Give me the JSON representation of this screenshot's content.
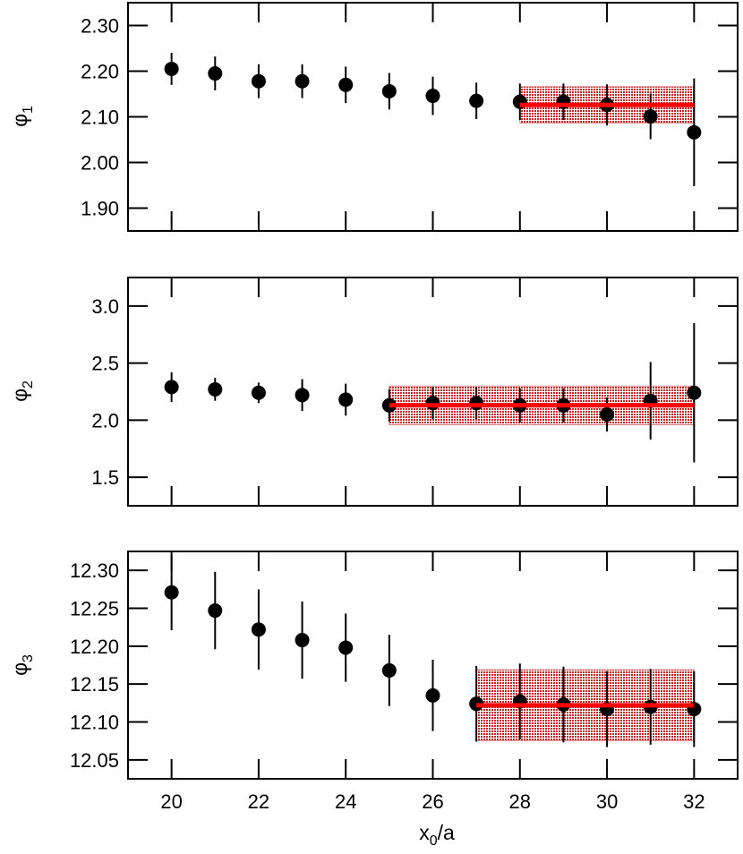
{
  "chart_data": [
    {
      "type": "scatter",
      "ylabel": "φ",
      "ylabel_sub": "1",
      "xlim": [
        19,
        33
      ],
      "ylim": [
        1.85,
        2.35
      ],
      "yticks": [
        "1.90",
        "2.00",
        "2.10",
        "2.20",
        "2.30"
      ],
      "x": [
        20,
        21,
        22,
        23,
        24,
        25,
        26,
        27,
        28,
        29,
        30,
        31,
        32
      ],
      "y": [
        2.205,
        2.195,
        2.178,
        2.178,
        2.17,
        2.156,
        2.146,
        2.135,
        2.133,
        2.133,
        2.126,
        2.101,
        2.066
      ],
      "yerr": [
        0.035,
        0.037,
        0.037,
        0.037,
        0.04,
        0.04,
        0.042,
        0.04,
        0.04,
        0.04,
        0.045,
        0.05,
        0.118
      ],
      "fit": {
        "x_range": [
          28,
          32
        ],
        "value": 2.126,
        "error": 0.04
      }
    },
    {
      "type": "scatter",
      "ylabel": "φ",
      "ylabel_sub": "2",
      "xlim": [
        19,
        33
      ],
      "ylim": [
        1.25,
        3.25
      ],
      "yticks": [
        "1.5",
        "2.0",
        "2.5",
        "3.0"
      ],
      "x": [
        20,
        21,
        22,
        23,
        24,
        25,
        26,
        27,
        28,
        29,
        30,
        31,
        32
      ],
      "y": [
        2.29,
        2.27,
        2.24,
        2.22,
        2.18,
        2.13,
        2.15,
        2.15,
        2.13,
        2.13,
        2.05,
        2.17,
        2.24
      ],
      "yerr": [
        0.13,
        0.1,
        0.09,
        0.14,
        0.14,
        0.14,
        0.14,
        0.14,
        0.15,
        0.15,
        0.15,
        0.34,
        0.61
      ],
      "fit": {
        "x_range": [
          25,
          32
        ],
        "value": 2.13,
        "error": 0.17
      }
    },
    {
      "type": "scatter",
      "ylabel": "φ",
      "ylabel_sub": "3",
      "xlabel": "x",
      "xlabel_sub": "0",
      "xlabel_suffix": "/a",
      "xlim": [
        19,
        33
      ],
      "ylim": [
        12.025,
        12.325
      ],
      "xticks": [
        "20",
        "22",
        "24",
        "26",
        "28",
        "30",
        "32"
      ],
      "yticks": [
        "12.05",
        "12.10",
        "12.15",
        "12.20",
        "12.25",
        "12.30"
      ],
      "x": [
        20,
        21,
        22,
        23,
        24,
        25,
        26,
        27,
        28,
        29,
        30,
        31,
        32
      ],
      "y": [
        12.271,
        12.247,
        12.222,
        12.208,
        12.198,
        12.168,
        12.135,
        12.124,
        12.127,
        12.123,
        12.117,
        12.12,
        12.117
      ],
      "yerr": [
        0.05,
        0.051,
        0.053,
        0.051,
        0.045,
        0.047,
        0.047,
        0.05,
        0.05,
        0.05,
        0.05,
        0.05,
        0.05
      ],
      "fit": {
        "x_range": [
          27,
          32
        ],
        "value": 12.122,
        "error": 0.047
      }
    }
  ],
  "colors": {
    "points": "#000000",
    "fit_line": "#ff0000",
    "fit_band": "#c00000"
  }
}
